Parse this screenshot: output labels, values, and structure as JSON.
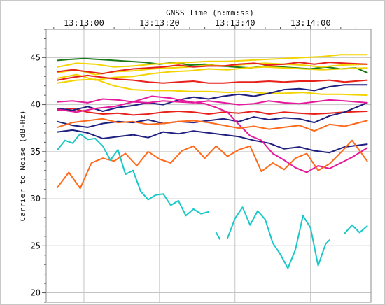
{
  "chart_data": {
    "type": "line",
    "title": "GNSS Time (h:mm:ss)",
    "ylabel": "Carrier to Noise (dB-Hz)",
    "xlabel": "",
    "x_ticks": [
      "13:13:00",
      "13:13:20",
      "13:13:40",
      "13:14:00"
    ],
    "x_tick_seconds": [
      60,
      80,
      100,
      120
    ],
    "xlim": [
      50,
      136
    ],
    "y_ticks": [
      20,
      25,
      30,
      35,
      40,
      45
    ],
    "ylim": [
      19,
      48
    ],
    "grid": true,
    "legend": "none",
    "series": [
      {
        "color": "#1a7a1a",
        "x": [
          53,
          56,
          60,
          64,
          68,
          72,
          76,
          80,
          84,
          88,
          92,
          96,
          100,
          104,
          108,
          112,
          116,
          120,
          124,
          128,
          132,
          135
        ],
        "y": [
          44.7,
          44.8,
          44.9,
          44.8,
          44.7,
          44.6,
          44.5,
          44.3,
          44.5,
          44.2,
          44.3,
          44.1,
          44.0,
          43.9,
          44.1,
          44.0,
          43.9,
          43.8,
          44.0,
          43.8,
          43.9,
          43.4
        ]
      },
      {
        "color": "#f2d400",
        "x": [
          53,
          58,
          63,
          68,
          73,
          78,
          83,
          88,
          93,
          98,
          103,
          108,
          113,
          118,
          123,
          128,
          135
        ],
        "y": [
          44.0,
          44.4,
          44.3,
          44.0,
          44.1,
          44.3,
          44.4,
          44.5,
          44.6,
          44.6,
          44.7,
          44.8,
          44.9,
          45.0,
          45.1,
          45.3,
          45.3
        ]
      },
      {
        "color": "#f2d400",
        "x": [
          53,
          58,
          63,
          68,
          73,
          78,
          83,
          88,
          93,
          98,
          103,
          108,
          113,
          118,
          123,
          128,
          135
        ],
        "y": [
          43.4,
          43.7,
          43.2,
          43.5,
          43.6,
          43.8,
          43.9,
          44.0,
          44.2,
          44.1,
          44.3,
          44.4,
          44.3,
          44.2,
          44.0,
          44.2,
          44.3
        ]
      },
      {
        "color": "#f2d400",
        "x": [
          53,
          58,
          63,
          68,
          73,
          78,
          83,
          88,
          93,
          98,
          103,
          108,
          113,
          118,
          123,
          128,
          135
        ],
        "y": [
          42.8,
          43.2,
          42.6,
          42.9,
          43.0,
          43.3,
          43.5,
          43.6,
          43.8,
          43.7,
          43.9,
          44.0,
          43.9,
          43.8,
          43.7,
          43.8,
          43.9
        ]
      },
      {
        "color": "#f2d400",
        "x": [
          53,
          58,
          63,
          68,
          73,
          78,
          83,
          88,
          93,
          98,
          103,
          108,
          113,
          118,
          123,
          128,
          135
        ],
        "y": [
          42.3,
          42.6,
          42.7,
          42.0,
          41.6,
          41.5,
          41.5,
          41.4,
          41.4,
          41.3,
          41.4,
          41.2,
          41.2,
          41.3,
          41.1,
          41.1,
          41.0
        ]
      },
      {
        "color": "#e8201a",
        "x": [
          53,
          57,
          61,
          65,
          69,
          73,
          77,
          81,
          85,
          89,
          93,
          97,
          101,
          105,
          109,
          113,
          117,
          121,
          125,
          129,
          135
        ],
        "y": [
          43.5,
          43.7,
          43.5,
          43.3,
          43.6,
          43.8,
          43.9,
          44.0,
          44.2,
          44.0,
          44.1,
          44.1,
          44.3,
          44.4,
          44.2,
          44.3,
          44.5,
          44.3,
          44.5,
          44.4,
          44.3
        ]
      },
      {
        "color": "#e8201a",
        "x": [
          53,
          57,
          61,
          65,
          69,
          73,
          77,
          81,
          85,
          89,
          93,
          97,
          101,
          105,
          109,
          113,
          117,
          121,
          125,
          129,
          135
        ],
        "y": [
          42.6,
          42.9,
          43.1,
          42.9,
          42.7,
          42.6,
          42.4,
          42.3,
          42.4,
          42.5,
          42.3,
          42.3,
          42.4,
          42.4,
          42.5,
          42.4,
          42.5,
          42.5,
          42.6,
          42.4,
          42.6
        ]
      },
      {
        "color": "#e8201a",
        "x": [
          53,
          57,
          61,
          65,
          69,
          73,
          77,
          81,
          85,
          89,
          93,
          97,
          101,
          105,
          109,
          113,
          117,
          121,
          125,
          129,
          135
        ],
        "y": [
          39.4,
          39.6,
          39.2,
          39.0,
          39.1,
          38.9,
          39.0,
          39.2,
          39.3,
          39.2,
          39.0,
          39.2,
          39.1,
          39.3,
          39.0,
          39.2,
          39.1,
          39.0,
          39.1,
          39.2,
          39.3
        ]
      },
      {
        "color": "#1f1f80",
        "x": [
          53,
          57,
          61,
          65,
          69,
          73,
          77,
          81,
          85,
          89,
          93,
          97,
          101,
          105,
          109,
          113,
          117,
          121,
          125,
          129,
          135
        ],
        "y": [
          39.6,
          39.4,
          39.8,
          39.3,
          39.7,
          39.9,
          40.2,
          40.0,
          40.5,
          40.8,
          40.6,
          40.9,
          41.1,
          40.9,
          41.2,
          41.6,
          41.7,
          41.5,
          41.9,
          42.1,
          42.1
        ]
      },
      {
        "color": "#1f1f80",
        "x": [
          53,
          57,
          61,
          65,
          69,
          73,
          77,
          81,
          85,
          89,
          93,
          97,
          101,
          105,
          109,
          113,
          117,
          121,
          125,
          129,
          135
        ],
        "y": [
          38.2,
          37.8,
          37.6,
          38.0,
          38.2,
          38.1,
          38.4,
          38.0,
          38.2,
          38.1,
          38.3,
          38.5,
          38.2,
          38.7,
          38.4,
          38.6,
          38.5,
          38.1,
          38.8,
          39.2,
          40.2
        ]
      },
      {
        "color": "#1f1f80",
        "x": [
          53,
          57,
          61,
          65,
          69,
          73,
          77,
          81,
          85,
          89,
          93,
          97,
          101,
          105,
          109,
          113,
          117,
          121,
          125,
          129,
          135
        ],
        "y": [
          37.1,
          37.3,
          37.0,
          36.4,
          36.6,
          36.8,
          36.5,
          37.1,
          36.9,
          37.2,
          37.0,
          36.8,
          36.6,
          36.2,
          35.9,
          35.3,
          35.5,
          35.1,
          34.9,
          35.5,
          35.8
        ]
      },
      {
        "color": "#e5199b",
        "x": [
          53,
          57,
          61,
          65,
          69,
          73,
          77,
          81,
          85,
          89,
          93,
          97,
          101,
          105,
          109,
          113,
          117,
          121,
          125,
          129,
          135
        ],
        "y": [
          40.3,
          40.4,
          40.2,
          40.6,
          40.5,
          40.3,
          40.2,
          40.4,
          40.3,
          40.2,
          40.4,
          40.2,
          40.0,
          40.1,
          40.4,
          40.2,
          40.1,
          40.3,
          40.5,
          40.4,
          40.2
        ]
      },
      {
        "color": "#e5199b",
        "x": [
          53,
          58,
          63,
          68,
          73,
          78,
          83,
          88,
          92,
          95,
          98,
          101,
          104,
          107,
          110,
          113,
          116,
          119,
          122,
          125,
          128,
          131,
          135
        ],
        "y": [
          39.5,
          39.2,
          39.6,
          39.8,
          40.3,
          40.9,
          40.7,
          40.3,
          40.1,
          39.7,
          39.2,
          37.9,
          36.7,
          36.2,
          34.8,
          34.1,
          33.3,
          32.8,
          33.5,
          33.2,
          33.8,
          34.4,
          35.4
        ]
      },
      {
        "color": "#ff6a1a",
        "x": [
          53,
          57,
          61,
          65,
          69,
          73,
          77,
          81,
          85,
          89,
          93,
          97,
          101,
          105,
          109,
          113,
          117,
          121,
          125,
          129,
          135
        ],
        "y": [
          37.6,
          38.1,
          38.3,
          38.5,
          38.1,
          38.2,
          37.9,
          38.0,
          38.2,
          38.3,
          38.1,
          37.8,
          37.5,
          37.7,
          37.4,
          37.6,
          37.8,
          37.2,
          37.9,
          37.7,
          38.3
        ]
      },
      {
        "color": "#ff6a1a",
        "x": [
          53,
          56,
          59,
          62,
          65,
          68,
          71,
          74,
          77,
          80,
          83,
          86,
          89,
          92,
          95,
          98,
          101,
          104,
          107,
          110,
          113,
          116,
          119,
          122,
          125,
          128,
          131,
          135
        ],
        "y": [
          31.2,
          32.8,
          31.1,
          33.8,
          34.3,
          34.0,
          34.8,
          33.5,
          35.0,
          34.2,
          33.8,
          35.1,
          35.6,
          34.3,
          35.6,
          34.5,
          35.2,
          35.6,
          32.9,
          33.8,
          33.1,
          34.3,
          34.8,
          33.0,
          33.7,
          34.9,
          36.2,
          34.0
        ]
      },
      {
        "color": "#19c8c8",
        "x": [
          53,
          55,
          57,
          59,
          61,
          63,
          65,
          67,
          69,
          71,
          73,
          75,
          77,
          79,
          81,
          83,
          85,
          87,
          89,
          91,
          93
        ],
        "y": [
          35.2,
          36.2,
          35.9,
          36.9,
          36.3,
          36.4,
          35.6,
          34.1,
          35.2,
          32.6,
          33.0,
          30.8,
          29.9,
          30.4,
          30.5,
          29.3,
          29.8,
          28.2,
          28.9,
          28.4,
          28.6
        ],
        "gap_after": true
      },
      {
        "color": "#19c8c8",
        "x": [
          95,
          96
        ],
        "y": [
          26.4,
          25.7
        ],
        "gap_after": true
      },
      {
        "color": "#19c8c8",
        "x": [
          98,
          100,
          102,
          104,
          106,
          108,
          110,
          112,
          114,
          116,
          118,
          120,
          122,
          124,
          125
        ],
        "y": [
          25.8,
          27.9,
          29.1,
          27.2,
          28.7,
          27.8,
          25.3,
          24.1,
          22.6,
          24.6,
          28.2,
          26.9,
          22.9,
          25.2,
          25.6
        ],
        "gap_after": true
      },
      {
        "color": "#19c8c8",
        "x": [
          129,
          131,
          133,
          135
        ],
        "y": [
          26.3,
          27.2,
          26.4,
          27.1
        ]
      }
    ]
  }
}
